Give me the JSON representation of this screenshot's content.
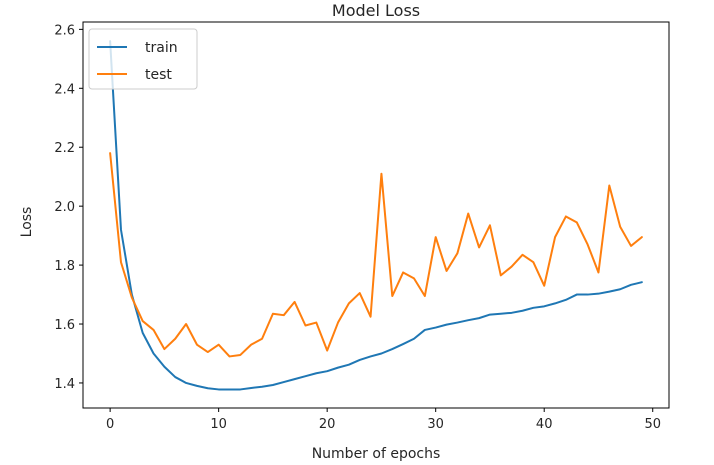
{
  "chart_data": {
    "type": "line",
    "title": "Model Loss",
    "xlabel": "Number of epochs",
    "ylabel": "Loss",
    "xlim": [
      -2.5,
      51.5
    ],
    "ylim": [
      1.315,
      2.625
    ],
    "xticks": [
      0,
      10,
      20,
      30,
      40,
      50
    ],
    "yticks": [
      1.4,
      1.6,
      1.8,
      2.0,
      2.2,
      2.4,
      2.6
    ],
    "ytick_labels": [
      "1.4",
      "1.6",
      "1.8",
      "2.0",
      "2.2",
      "2.4",
      "2.6"
    ],
    "grid": false,
    "legend_position": "upper left",
    "x": [
      0,
      1,
      2,
      3,
      4,
      5,
      6,
      7,
      8,
      9,
      10,
      11,
      12,
      13,
      14,
      15,
      16,
      17,
      18,
      19,
      20,
      21,
      22,
      23,
      24,
      25,
      26,
      27,
      28,
      29,
      30,
      31,
      32,
      33,
      34,
      35,
      36,
      37,
      38,
      39,
      40,
      41,
      42,
      43,
      44,
      45,
      46,
      47,
      48,
      49
    ],
    "series": [
      {
        "name": "train",
        "color": "#1f77b4",
        "values": [
          2.56,
          1.92,
          1.7,
          1.57,
          1.5,
          1.455,
          1.42,
          1.4,
          1.39,
          1.382,
          1.378,
          1.378,
          1.378,
          1.383,
          1.387,
          1.393,
          1.403,
          1.413,
          1.423,
          1.433,
          1.44,
          1.452,
          1.462,
          1.478,
          1.49,
          1.5,
          1.515,
          1.532,
          1.55,
          1.58,
          1.588,
          1.598,
          1.605,
          1.613,
          1.62,
          1.632,
          1.635,
          1.638,
          1.645,
          1.655,
          1.66,
          1.67,
          1.682,
          1.7,
          1.7,
          1.703,
          1.71,
          1.718,
          1.733,
          1.742
        ]
      },
      {
        "name": "test",
        "color": "#ff7f0e",
        "values": [
          2.18,
          1.81,
          1.69,
          1.61,
          1.58,
          1.515,
          1.55,
          1.6,
          1.53,
          1.505,
          1.53,
          1.49,
          1.495,
          1.53,
          1.55,
          1.635,
          1.63,
          1.675,
          1.595,
          1.605,
          1.51,
          1.605,
          1.67,
          1.705,
          1.625,
          2.11,
          1.695,
          1.775,
          1.755,
          1.695,
          1.895,
          1.78,
          1.84,
          1.975,
          1.86,
          1.935,
          1.765,
          1.795,
          1.835,
          1.81,
          1.73,
          1.895,
          1.965,
          1.945,
          1.87,
          1.775,
          2.07,
          1.93,
          1.865,
          1.895
        ]
      }
    ]
  }
}
